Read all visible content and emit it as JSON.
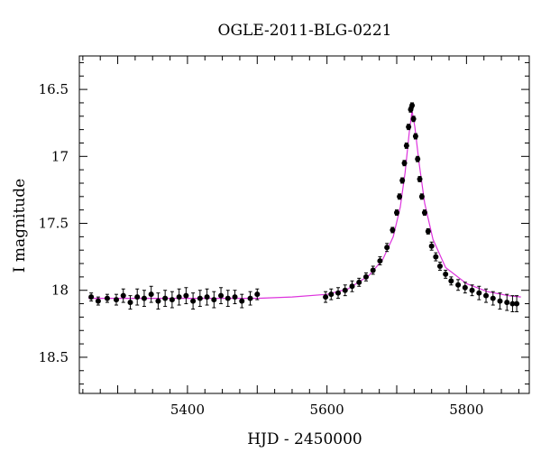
{
  "chart_data": {
    "type": "scatter",
    "title": "OGLE-2011-BLG-0221",
    "xlabel": "HJD - 2450000",
    "ylabel": "I magnitude",
    "xlim": [
      5245,
      5890
    ],
    "ylim": [
      18.77,
      16.25
    ],
    "y_inverted": true,
    "x_ticks": [
      5400,
      5600,
      5800
    ],
    "y_ticks": [
      16.5,
      17,
      17.5,
      18,
      18.5
    ],
    "x_tick_labels": [
      "5400",
      "5600",
      "5800"
    ],
    "y_tick_labels": [
      "16.5",
      "17",
      "17.5",
      "18",
      "18.5"
    ],
    "grid": false,
    "series": [
      {
        "kind": "observations",
        "marker": "filled-circle-with-errorbars",
        "color": "#000000",
        "x": [
          5262,
          5272,
          5285,
          5298,
          5308,
          5318,
          5328,
          5338,
          5348,
          5358,
          5368,
          5378,
          5388,
          5398,
          5408,
          5418,
          5428,
          5438,
          5448,
          5458,
          5468,
          5478,
          5490,
          5500,
          5598,
          5606,
          5616,
          5626,
          5636,
          5646,
          5656,
          5666,
          5676,
          5686,
          5694,
          5700,
          5704,
          5708,
          5711,
          5714,
          5717,
          5720,
          5722,
          5724,
          5727,
          5730,
          5733,
          5736,
          5740,
          5745,
          5750,
          5756,
          5762,
          5770,
          5778,
          5788,
          5798,
          5808,
          5818,
          5828,
          5838,
          5848,
          5858,
          5866,
          5872
        ],
        "y": [
          18.05,
          18.08,
          18.06,
          18.07,
          18.04,
          18.09,
          18.05,
          18.06,
          18.03,
          18.08,
          18.06,
          18.07,
          18.05,
          18.04,
          18.08,
          18.06,
          18.05,
          18.07,
          18.04,
          18.06,
          18.05,
          18.08,
          18.06,
          18.03,
          18.05,
          18.03,
          18.02,
          18.0,
          17.97,
          17.94,
          17.9,
          17.85,
          17.78,
          17.68,
          17.55,
          17.42,
          17.3,
          17.18,
          17.05,
          16.92,
          16.78,
          16.65,
          16.62,
          16.72,
          16.85,
          17.02,
          17.17,
          17.3,
          17.42,
          17.56,
          17.67,
          17.75,
          17.82,
          17.88,
          17.93,
          17.96,
          17.98,
          18.0,
          18.02,
          18.04,
          18.06,
          18.08,
          18.09,
          18.1,
          18.1
        ],
        "yerr": [
          0.03,
          0.03,
          0.03,
          0.04,
          0.05,
          0.05,
          0.06,
          0.06,
          0.06,
          0.06,
          0.06,
          0.06,
          0.06,
          0.06,
          0.06,
          0.06,
          0.06,
          0.06,
          0.06,
          0.06,
          0.05,
          0.05,
          0.05,
          0.04,
          0.04,
          0.04,
          0.04,
          0.04,
          0.04,
          0.03,
          0.03,
          0.03,
          0.03,
          0.03,
          0.02,
          0.02,
          0.02,
          0.02,
          0.02,
          0.02,
          0.02,
          0.02,
          0.02,
          0.02,
          0.02,
          0.02,
          0.02,
          0.02,
          0.02,
          0.02,
          0.03,
          0.03,
          0.03,
          0.03,
          0.03,
          0.04,
          0.04,
          0.04,
          0.05,
          0.05,
          0.05,
          0.06,
          0.06,
          0.06,
          0.06
        ]
      },
      {
        "kind": "model-fit",
        "marker": "line",
        "color": "#dd33dd",
        "x": [
          5258,
          5300,
          5350,
          5400,
          5450,
          5500,
          5550,
          5600,
          5630,
          5660,
          5680,
          5695,
          5705,
          5712,
          5718,
          5722,
          5726,
          5732,
          5740,
          5752,
          5770,
          5800,
          5830,
          5860,
          5878
        ],
        "y": [
          18.06,
          18.06,
          18.06,
          18.06,
          18.06,
          18.06,
          18.05,
          18.03,
          17.99,
          17.89,
          17.77,
          17.6,
          17.38,
          17.12,
          16.82,
          16.66,
          16.78,
          17.05,
          17.35,
          17.62,
          17.83,
          17.95,
          18.01,
          18.04,
          18.05
        ]
      }
    ]
  }
}
